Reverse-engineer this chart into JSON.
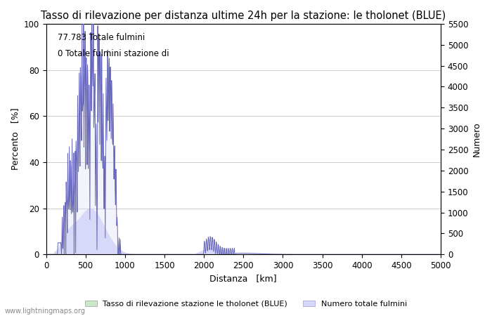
{
  "title": "Tasso di rilevazione per distanza ultime 24h per la stazione: le tholonet (BLUE)",
  "xlabel": "Distanza   [km]",
  "ylabel_left": "Percento   [%]",
  "ylabel_right": "Numero",
  "annotation_line1": "77.783 Totale fulmini",
  "annotation_line2": "0 Totale fulmini stazione di",
  "legend_label1": "Tasso di rilevazione stazione le tholonet (BLUE)",
  "legend_label2": "Numero totale fulmini",
  "watermark": "www.lightningmaps.org",
  "xlim": [
    0,
    5000
  ],
  "ylim_left": [
    0,
    100
  ],
  "ylim_right": [
    0,
    5500
  ],
  "xticks": [
    0,
    500,
    1000,
    1500,
    2000,
    2500,
    3000,
    3500,
    4000,
    4500,
    5000
  ],
  "yticks_left": [
    0,
    20,
    40,
    60,
    80,
    100
  ],
  "yticks_right": [
    0,
    500,
    1000,
    1500,
    2000,
    2500,
    3000,
    3500,
    4000,
    4500,
    5000,
    5500
  ],
  "bg_color": "#ffffff",
  "grid_color": "#bbbbbb",
  "fill_blue_color": "#d8d8f8",
  "line_blue_color": "#6666bb",
  "fill_green_color": "#c8eac8",
  "title_fontsize": 10.5,
  "label_fontsize": 9,
  "tick_fontsize": 8.5,
  "annotation_fontsize": 8.5
}
